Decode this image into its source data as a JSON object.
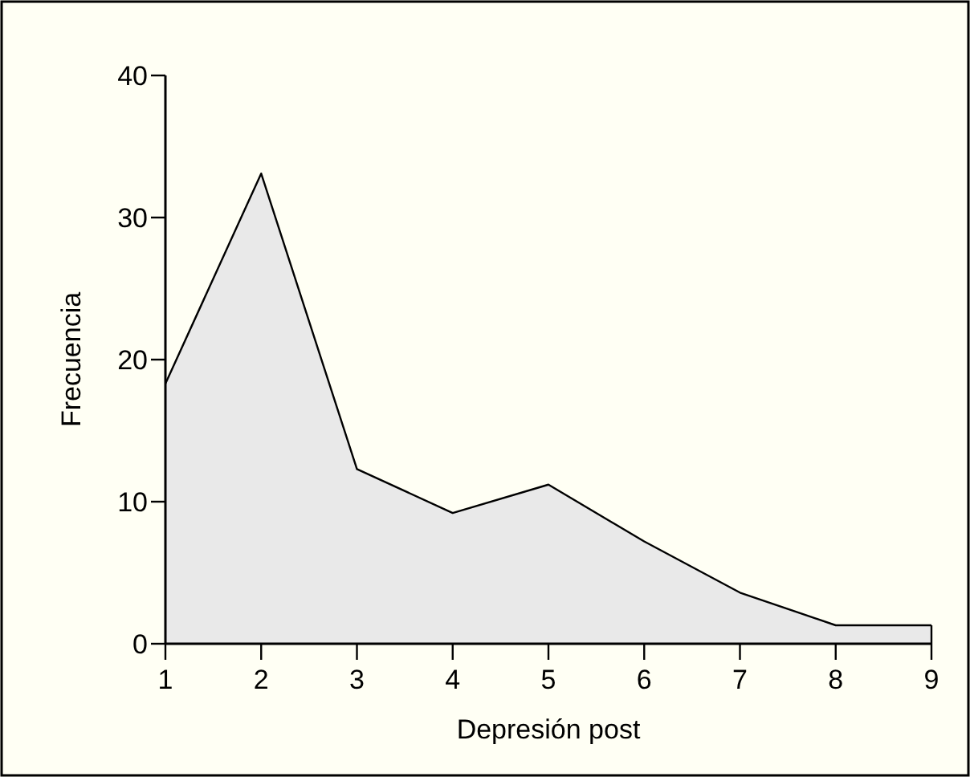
{
  "chart_data": {
    "type": "area",
    "xlabel": "Depresión post",
    "ylabel": "Frecuencia",
    "x": [
      1,
      2,
      3,
      4,
      5,
      6,
      7,
      8,
      9
    ],
    "series": [
      {
        "color": "#e9e9e9",
        "values": [
          18.3,
          33.1,
          12.3,
          9.2,
          11.2,
          7.2,
          3.6,
          1.3,
          1.3
        ]
      }
    ],
    "xlim": [
      1,
      9
    ],
    "xticks": [
      1,
      2,
      3,
      4,
      5,
      6,
      7,
      8,
      9
    ],
    "ylim": [
      0,
      40
    ],
    "yticks": [
      0,
      10,
      20,
      30,
      40
    ]
  }
}
